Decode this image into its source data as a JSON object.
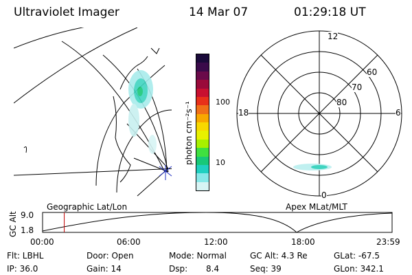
{
  "header": {
    "title": "Ultraviolet Imager",
    "date": "14 Mar 07",
    "time": "01:29:18 UT"
  },
  "colorbar": {
    "unit_label": "photon cm⁻²s⁻¹",
    "ticks": [
      "100",
      "10"
    ],
    "colors": [
      "#1a0a3a",
      "#3a0a4a",
      "#6a0a4a",
      "#9a0a3a",
      "#c81030",
      "#e8301a",
      "#f07018",
      "#f8a800",
      "#f8d800",
      "#e8f000",
      "#a8f000",
      "#40e040",
      "#18c878",
      "#20d0c0",
      "#88e8e8",
      "#d8f4f4"
    ]
  },
  "geo_panel": {
    "label": "Geographic Lat/Lon"
  },
  "polar_panel": {
    "label": "Apex MLat/MLT",
    "mlt_labels": {
      "top": "12",
      "left": "18",
      "right": "6",
      "bottom": "0"
    },
    "lat_labels": [
      "60",
      "70",
      "80"
    ]
  },
  "altitude_plot": {
    "ylabel": "GC Alt",
    "ymax": "9.0",
    "ymin": "1.8",
    "x_ticks": [
      "00:00",
      "06:00",
      "12:00",
      "18:00",
      "23:59"
    ],
    "marker_time_fraction": 0.062
  },
  "info": {
    "filter": "Flt: LBHL",
    "ip": "IP: 36.0",
    "door": "Door: Open",
    "gain": "Gain: 14",
    "mode": "Mode: Normal",
    "dsp_label": "Dsp:",
    "dsp_value": "8.4",
    "gc_alt": "GC Alt: 4.3 Re",
    "seq": "Seq: 39",
    "glat": "GLat: -67.5",
    "glon": "GLon: 342.1"
  }
}
